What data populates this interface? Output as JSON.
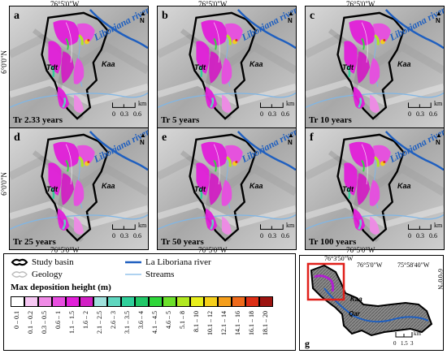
{
  "top_longitude_labels": [
    "76°5'0\"W",
    "76°5'0\"W",
    "76°5'0\"W"
  ],
  "bottom_longitude_labels": [
    "76°5'0\"W",
    "76°5'0\"W",
    "76°5'0\"W"
  ],
  "latitude_labels": [
    "6°0'0\"N",
    "6°0'0\"N"
  ],
  "panels": [
    {
      "letter": "a",
      "return_period": "Tr 2.33 years"
    },
    {
      "letter": "b",
      "return_period": "Tr 5 years"
    },
    {
      "letter": "c",
      "return_period": "Tr 10 years"
    },
    {
      "letter": "d",
      "return_period": "Tr 25 years"
    },
    {
      "letter": "e",
      "return_period": "Tr 50 years"
    },
    {
      "letter": "f",
      "return_period": "Tr 100 years"
    }
  ],
  "panel_labels": {
    "river": "Liboriana river",
    "geology_tdt": "Tdt",
    "geology_kaa": "Kaa",
    "north": "N"
  },
  "scale_bar": {
    "values": [
      "0",
      "0.3",
      "0.6"
    ],
    "unit": "km"
  },
  "legend": {
    "study_basin": "Study basin",
    "geology": "Geology",
    "river": "La Liboriana river",
    "streams": "Streams",
    "title": "Max deposition height (m)",
    "classes": [
      {
        "label": "0 – 0.1",
        "color": "#ffffff"
      },
      {
        "label": "0.1 – 0.2",
        "color": "#f7c8f4"
      },
      {
        "label": "0.3 – 0.5",
        "color": "#ef8ae6"
      },
      {
        "label": "0.6 – 1",
        "color": "#e84de0"
      },
      {
        "label": "1.1 – 1.5",
        "color": "#e21fd9"
      },
      {
        "label": "1.6 – 2",
        "color": "#d21fc4"
      },
      {
        "label": "2.1 – 2.5",
        "color": "#9fe0dc"
      },
      {
        "label": "2.6 – 3",
        "color": "#5fd6bf"
      },
      {
        "label": "3.1 – 3.5",
        "color": "#2fcf9a"
      },
      {
        "label": "3.6 – 4",
        "color": "#20c868"
      },
      {
        "label": "4.1 – 4.5",
        "color": "#2fd63a"
      },
      {
        "label": "4.6 – 5",
        "color": "#6be02a"
      },
      {
        "label": "5.1 – 8",
        "color": "#b0e81f"
      },
      {
        "label": "8.1 – 10",
        "color": "#e8ef1c"
      },
      {
        "label": "10.1 – 12",
        "color": "#f5cf1b"
      },
      {
        "label": "12.1 – 14",
        "color": "#f59e1b"
      },
      {
        "label": "14.1 – 16",
        "color": "#ef6a1b"
      },
      {
        "label": "16.1 – 18",
        "color": "#dd2f16"
      },
      {
        "label": "18.1 – 20",
        "color": "#9d1410"
      }
    ]
  },
  "inset": {
    "letter": "g",
    "lon_labels": [
      "76°3'50\"W",
      "76°5'0\"W",
      "75°58'40\"W"
    ],
    "lat_label": "6°0'0\"N",
    "geology_labels": [
      "Kaa",
      "Qar"
    ],
    "scale_values": [
      "0",
      "1.5",
      "3"
    ],
    "scale_unit": "km"
  },
  "colors": {
    "river": "#1f5fbf",
    "frame": "#000000",
    "highlight": "#e0201b"
  }
}
